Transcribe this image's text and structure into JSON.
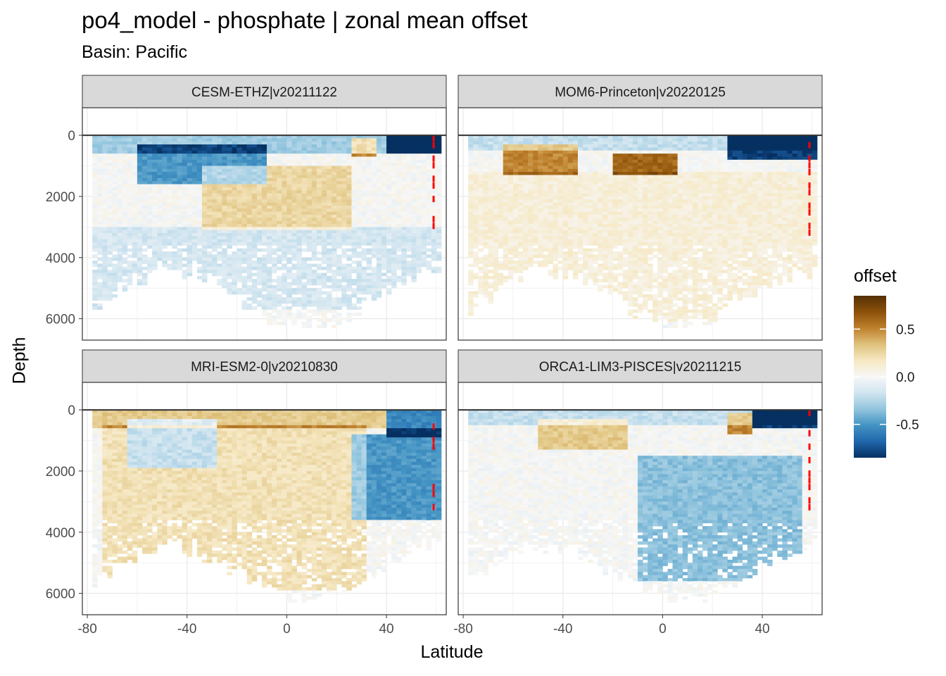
{
  "title": "po4_model - phosphate  | zonal mean offset",
  "subtitle": "Basin: Pacific",
  "chart_data": {
    "type": "heatmap",
    "xlabel": "Latitude",
    "ylabel": "Depth",
    "x_ticks": [
      -80,
      -40,
      0,
      40
    ],
    "y_ticks": [
      0,
      2000,
      4000,
      6000
    ],
    "xlim": [
      -82,
      64
    ],
    "ylim": [
      6700,
      -900
    ],
    "y_reversed": true,
    "grid": true,
    "legend": {
      "title": "offset",
      "placement": "right",
      "type": "colorbar",
      "ticks": [
        0.5,
        0.0,
        -0.5
      ],
      "tick_labels": [
        "0.5",
        "0.0",
        "-0.5"
      ],
      "range": [
        -0.85,
        0.85
      ],
      "colors": [
        "#053061",
        "#2166ac",
        "#4393c3",
        "#92c5de",
        "#d1e5f0",
        "#f7f7f7",
        "#f6e8c3",
        "#dfc27d",
        "#bf812d",
        "#8c510a",
        "#543005"
      ]
    },
    "out_of_range_color": "#ff0000",
    "panels": [
      {
        "name": "CESM-ETHZ|v20211122",
        "features": [
          {
            "lat": [
              -78,
              60
            ],
            "depth": [
              0,
              500
            ],
            "offset": -0.3
          },
          {
            "lat": [
              -60,
              -10
            ],
            "depth": [
              300,
              1500
            ],
            "offset": -0.5
          },
          {
            "lat": [
              -35,
              25
            ],
            "depth": [
              1000,
              3000
            ],
            "offset": 0.25
          },
          {
            "lat": [
              -78,
              60
            ],
            "depth": [
              3000,
              5600
            ],
            "offset": -0.15
          },
          {
            "lat": [
              25,
              35
            ],
            "depth": [
              100,
              600
            ],
            "offset": 0.5
          },
          {
            "lat": [
              40,
              60
            ],
            "depth": [
              0,
              500
            ],
            "offset": -0.7
          }
        ]
      },
      {
        "name": "MOM6-Princeton|v20220125",
        "features": [
          {
            "lat": [
              -78,
              62
            ],
            "depth": [
              0,
              400
            ],
            "offset": -0.2
          },
          {
            "lat": [
              -65,
              -35
            ],
            "depth": [
              300,
              1200
            ],
            "offset": 0.5
          },
          {
            "lat": [
              -20,
              5
            ],
            "depth": [
              600,
              1200
            ],
            "offset": 0.6
          },
          {
            "lat": [
              25,
              60
            ],
            "depth": [
              0,
              700
            ],
            "offset": -0.8
          },
          {
            "lat": [
              -78,
              62
            ],
            "depth": [
              1200,
              6000
            ],
            "offset": 0.1
          }
        ]
      },
      {
        "name": "MRI-ESM2-0|v20210830",
        "features": [
          {
            "lat": [
              -78,
              62
            ],
            "depth": [
              0,
              500
            ],
            "offset": 0.3
          },
          {
            "lat": [
              -65,
              -30
            ],
            "depth": [
              300,
              1800
            ],
            "offset": -0.4
          },
          {
            "lat": [
              -75,
              30
            ],
            "depth": [
              500,
              5800
            ],
            "offset": 0.2
          },
          {
            "lat": [
              25,
              60
            ],
            "depth": [
              800,
              3500
            ],
            "offset": -0.5
          },
          {
            "lat": [
              40,
              60
            ],
            "depth": [
              0,
              800
            ],
            "offset": -0.85
          }
        ]
      },
      {
        "name": "ORCA1-LIM3-PISCES|v20211215",
        "features": [
          {
            "lat": [
              -78,
              62
            ],
            "depth": [
              0,
              400
            ],
            "offset": -0.2
          },
          {
            "lat": [
              -50,
              -15
            ],
            "depth": [
              300,
              1200
            ],
            "offset": 0.3
          },
          {
            "lat": [
              25,
              35
            ],
            "depth": [
              100,
              700
            ],
            "offset": 0.5
          },
          {
            "lat": [
              -10,
              55
            ],
            "depth": [
              1500,
              5500
            ],
            "offset": -0.35
          },
          {
            "lat": [
              35,
              60
            ],
            "depth": [
              0,
              500
            ],
            "offset": -0.8
          }
        ]
      }
    ]
  }
}
